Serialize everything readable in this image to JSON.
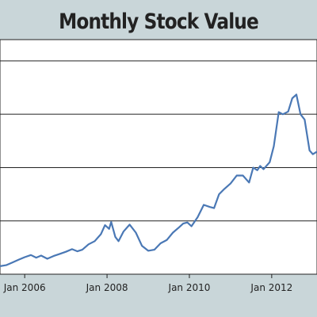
{
  "chart_data": {
    "type": "line",
    "title": "Monthly Stock Value",
    "xlabel": "",
    "ylabel": "",
    "grid": "horizontal",
    "legend": "none",
    "colors": {
      "line": "#4a78b5",
      "plot_bg": "#ffffff",
      "page_bg": "#c9d6d9",
      "gridline": "#222222",
      "text": "#222222"
    },
    "x_ticks": [
      {
        "label": "Jan 2006",
        "x": 2006.0
      },
      {
        "label": "Jan 2008",
        "x": 2008.0
      },
      {
        "label": "Jan 2010",
        "x": 2010.0
      },
      {
        "label": "Jan 2012",
        "x": 2012.0
      }
    ],
    "xlim": [
      2005.4,
      2013.1
    ],
    "ylim": [
      0,
      4.4
    ],
    "y_gridlines": [
      1,
      2,
      3,
      4
    ],
    "series": [
      {
        "name": "",
        "points": [
          [
            2005.4,
            0.15
          ],
          [
            2005.55,
            0.17
          ],
          [
            2005.7,
            0.22
          ],
          [
            2005.85,
            0.27
          ],
          [
            2006.0,
            0.32
          ],
          [
            2006.15,
            0.36
          ],
          [
            2006.28,
            0.31
          ],
          [
            2006.4,
            0.35
          ],
          [
            2006.55,
            0.29
          ],
          [
            2006.7,
            0.34
          ],
          [
            2006.85,
            0.38
          ],
          [
            2007.0,
            0.42
          ],
          [
            2007.15,
            0.47
          ],
          [
            2007.28,
            0.43
          ],
          [
            2007.4,
            0.46
          ],
          [
            2007.55,
            0.56
          ],
          [
            2007.7,
            0.62
          ],
          [
            2007.85,
            0.75
          ],
          [
            2007.95,
            0.92
          ],
          [
            2008.05,
            0.85
          ],
          [
            2008.1,
            0.98
          ],
          [
            2008.2,
            0.7
          ],
          [
            2008.28,
            0.62
          ],
          [
            2008.4,
            0.8
          ],
          [
            2008.55,
            0.93
          ],
          [
            2008.7,
            0.78
          ],
          [
            2008.85,
            0.53
          ],
          [
            2009.0,
            0.44
          ],
          [
            2009.15,
            0.46
          ],
          [
            2009.3,
            0.58
          ],
          [
            2009.45,
            0.64
          ],
          [
            2009.6,
            0.78
          ],
          [
            2009.75,
            0.88
          ],
          [
            2009.85,
            0.95
          ],
          [
            2009.95,
            0.97
          ],
          [
            2010.05,
            0.9
          ],
          [
            2010.2,
            1.07
          ],
          [
            2010.35,
            1.3
          ],
          [
            2010.5,
            1.26
          ],
          [
            2010.6,
            1.24
          ],
          [
            2010.72,
            1.5
          ],
          [
            2010.85,
            1.6
          ],
          [
            2011.0,
            1.7
          ],
          [
            2011.15,
            1.85
          ],
          [
            2011.3,
            1.85
          ],
          [
            2011.45,
            1.72
          ],
          [
            2011.55,
            2.0
          ],
          [
            2011.65,
            1.95
          ],
          [
            2011.72,
            2.03
          ],
          [
            2011.8,
            1.97
          ],
          [
            2011.95,
            2.1
          ],
          [
            2012.05,
            2.4
          ],
          [
            2012.17,
            3.04
          ],
          [
            2012.27,
            3.0
          ],
          [
            2012.4,
            3.05
          ],
          [
            2012.5,
            3.3
          ],
          [
            2012.6,
            3.37
          ],
          [
            2012.7,
            3.0
          ],
          [
            2012.8,
            2.9
          ],
          [
            2012.92,
            2.32
          ],
          [
            2013.0,
            2.25
          ],
          [
            2013.1,
            2.3
          ]
        ]
      }
    ]
  }
}
